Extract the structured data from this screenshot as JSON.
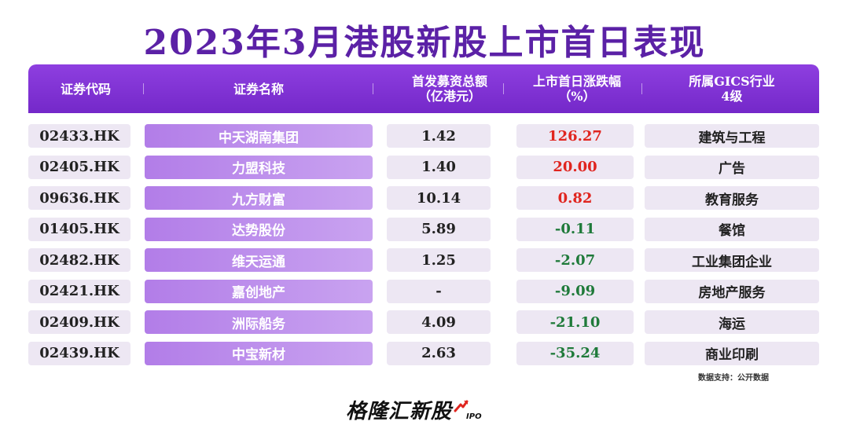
{
  "title": "2023年3月港股新股上市首日表现",
  "header": {
    "code": "证券代码",
    "name": "证券名称",
    "amount_line1": "首发募资总额",
    "amount_line2": "（亿港元）",
    "change_line1": "上市首日涨跌幅",
    "change_line2": "（%）",
    "industry_line1": "所属GICS行业",
    "industry_line2": "4级"
  },
  "colors": {
    "positive": "#e0251f",
    "negative": "#1f7a3a",
    "accent": "#7428c9"
  },
  "chart_data": {
    "type": "table",
    "columns": [
      "证券代码",
      "证券名称",
      "首发募资总额（亿港元）",
      "上市首日涨跌幅（%）",
      "所属GICS行业4级"
    ],
    "rows": [
      {
        "code": "02433.HK",
        "name": "中天湖南集团",
        "amount": "1.42",
        "change": "126.27",
        "industry": "建筑与工程"
      },
      {
        "code": "02405.HK",
        "name": "力盟科技",
        "amount": "1.40",
        "change": "20.00",
        "industry": "广告"
      },
      {
        "code": "09636.HK",
        "name": "九方财富",
        "amount": "10.14",
        "change": "0.82",
        "industry": "教育服务"
      },
      {
        "code": "01405.HK",
        "name": "达势股份",
        "amount": "5.89",
        "change": "-0.11",
        "industry": "餐馆"
      },
      {
        "code": "02482.HK",
        "name": "维天运通",
        "amount": "1.25",
        "change": "-2.07",
        "industry": "工业集团企业"
      },
      {
        "code": "02421.HK",
        "name": "嘉创地产",
        "amount": "-",
        "change": "-9.09",
        "industry": "房地产服务"
      },
      {
        "code": "02409.HK",
        "name": "洲际船务",
        "amount": "4.09",
        "change": "-21.10",
        "industry": "海运"
      },
      {
        "code": "02439.HK",
        "name": "中宝新材",
        "amount": "2.63",
        "change": "-35.24",
        "industry": "商业印刷"
      }
    ]
  },
  "source": "数据支持：公开数据",
  "logo": {
    "text": "格隆汇新股",
    "suffix": "IPO"
  }
}
